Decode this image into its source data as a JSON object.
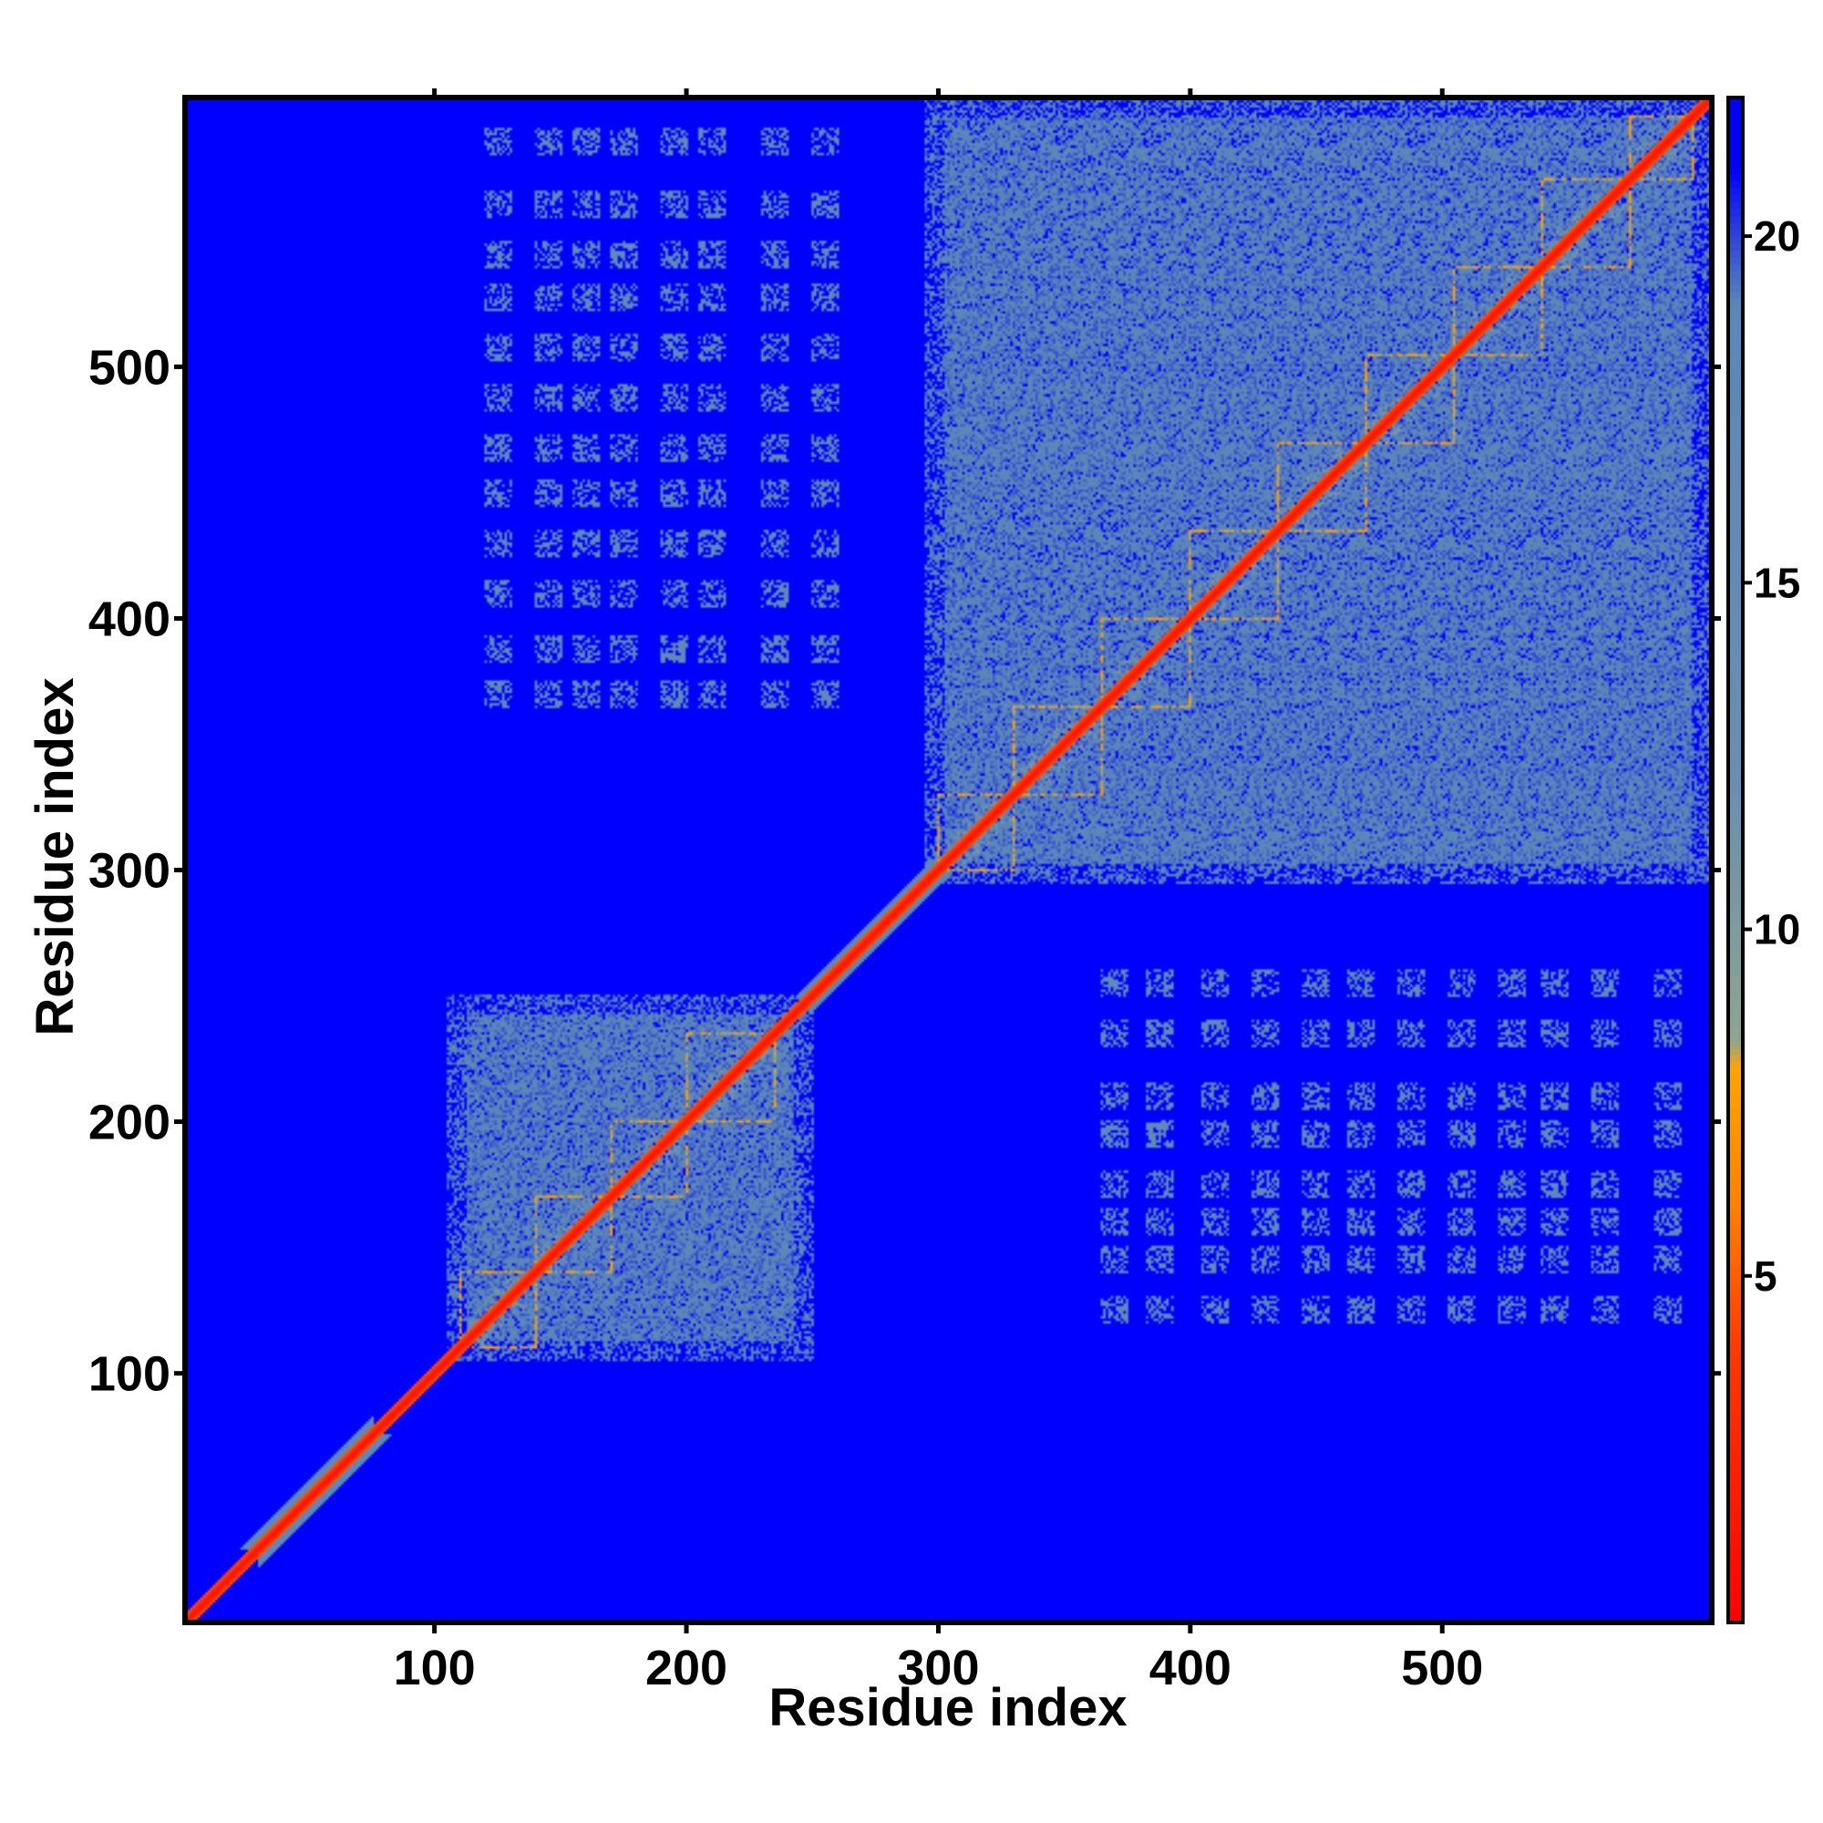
{
  "chart_data": {
    "type": "heatmap",
    "title": "",
    "xlabel": "Residue index",
    "ylabel": "Residue index",
    "xlim": [
      1,
      607
    ],
    "ylim": [
      1,
      607
    ],
    "x_ticks": [
      100,
      200,
      300,
      400,
      500
    ],
    "y_ticks": [
      100,
      200,
      300,
      400,
      500
    ],
    "colorbar": {
      "ticks": [
        5,
        10,
        15,
        20
      ],
      "range": [
        0,
        22
      ],
      "stops": [
        {
          "value": 0,
          "color": "#ff0000"
        },
        {
          "value": 4,
          "color": "#ff3a00"
        },
        {
          "value": 6,
          "color": "#ff8000"
        },
        {
          "value": 8,
          "color": "#ffa500"
        },
        {
          "value": 8.4,
          "color": "#8fa58f"
        },
        {
          "value": 12,
          "color": "#6a8fb0"
        },
        {
          "value": 19,
          "color": "#5b87b8"
        },
        {
          "value": 21,
          "color": "#0000ff"
        },
        {
          "value": 22,
          "color": "#0000ff"
        }
      ]
    },
    "background_value": 21,
    "colors": {
      "background": "#0000ff",
      "contact": "#5b87b8",
      "diagonal": "#ff1a00",
      "helix_pattern": "#ffa020"
    },
    "domains": [
      {
        "start": 105,
        "end": 250,
        "value": 18
      },
      {
        "start": 295,
        "end": 607,
        "value": 18
      }
    ],
    "diagonal_segments": [
      {
        "start": 1,
        "end": 607,
        "halfwidth": 2.5,
        "value": 1
      },
      {
        "start": 30,
        "end": 75,
        "halfwidth": 7,
        "value": 17
      },
      {
        "start": 250,
        "end": 300,
        "halfwidth": 6,
        "value": 17
      }
    ],
    "repeat_boxes": [
      {
        "start": 110,
        "end": 140,
        "value": 7
      },
      {
        "start": 140,
        "end": 170,
        "value": 7
      },
      {
        "start": 170,
        "end": 200,
        "value": 7
      },
      {
        "start": 200,
        "end": 235,
        "value": 7
      },
      {
        "start": 300,
        "end": 330,
        "value": 7
      },
      {
        "start": 330,
        "end": 365,
        "value": 7
      },
      {
        "start": 365,
        "end": 400,
        "value": 7
      },
      {
        "start": 400,
        "end": 435,
        "value": 7
      },
      {
        "start": 435,
        "end": 470,
        "value": 7
      },
      {
        "start": 470,
        "end": 505,
        "value": 7
      },
      {
        "start": 505,
        "end": 540,
        "value": 7
      },
      {
        "start": 540,
        "end": 575,
        "value": 7
      },
      {
        "start": 575,
        "end": 600,
        "value": 7
      }
    ],
    "interdomain_x_bands": [
      370,
      388,
      410,
      430,
      450,
      468,
      488,
      508,
      528,
      545,
      565,
      590
    ],
    "interdomain_y_bands": [
      125,
      145,
      160,
      175,
      195,
      210,
      235,
      255
    ],
    "interdomain_bands_value": 17
  }
}
